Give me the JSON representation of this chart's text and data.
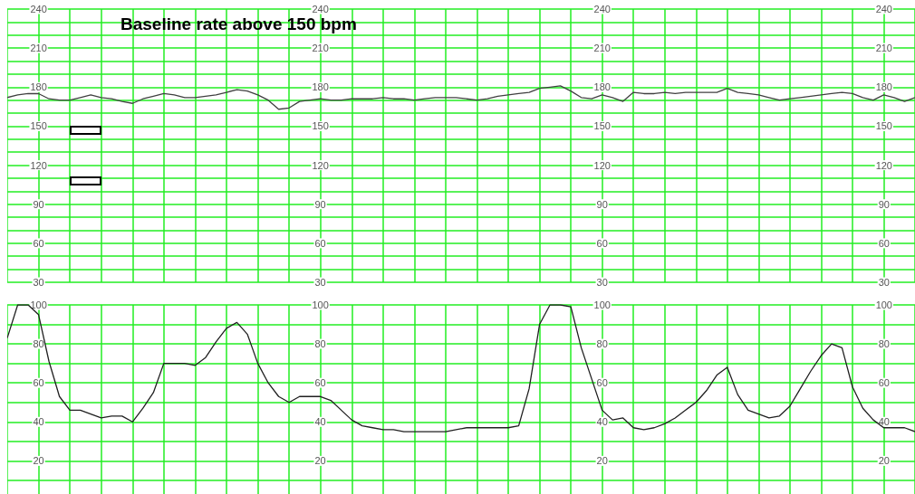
{
  "chart_data": [
    {
      "type": "line",
      "title": "Baseline rate above 150 bpm",
      "categories": [
        null,
        null,
        null,
        null,
        null,
        null,
        null,
        null,
        null,
        null,
        null,
        null,
        null,
        null,
        null,
        null,
        null,
        null,
        null,
        null,
        null,
        null,
        null,
        null,
        null,
        null,
        null,
        null,
        null,
        null,
        null,
        null,
        null,
        null,
        null,
        null,
        null,
        null,
        null,
        null,
        null,
        null,
        null,
        null,
        null
      ],
      "values": [
        172,
        174,
        175,
        175,
        171,
        170,
        170,
        172,
        174,
        172,
        171,
        169,
        167.5,
        171,
        173,
        175,
        174,
        172,
        172,
        173,
        174,
        176,
        178,
        177,
        174,
        170,
        163,
        164,
        169,
        170,
        171,
        170,
        170,
        171,
        171,
        171,
        172,
        171,
        171,
        170,
        171,
        172,
        172,
        172,
        171
      ],
      "color": "#404040",
      "ylim": [
        30,
        240
      ],
      "yticks": [
        30,
        {
          "value": 40,
          "label": null
        },
        {
          "value": 50,
          "label": null
        },
        60,
        {
          "value": 70,
          "label": null
        },
        {
          "value": 80,
          "label": null
        },
        90,
        {
          "value": 100,
          "label": null
        },
        {
          "value": 110,
          "label": null
        },
        120,
        {
          "value": 130,
          "label": null
        },
        {
          "value": 140,
          "label": null
        },
        150,
        {
          "value": 160,
          "label": null
        },
        {
          "value": 170,
          "label": null
        },
        180,
        {
          "value": 190,
          "label": null
        },
        {
          "value": 200,
          "label": null
        },
        210,
        {
          "value": 220,
          "label": null
        },
        {
          "value": 230,
          "label": null
        },
        240
      ],
      "y2lim": [
        30,
        240
      ],
      "y2ticks": [
        30,
        60,
        90,
        120,
        150,
        180,
        210,
        240
      ],
      "grid": true,
      "marker": "none",
      "tick_labels": "y"
    },
    {
      "type": "line",
      "categories": [
        null,
        null,
        null,
        null,
        null,
        null,
        null,
        null,
        null,
        null,
        null,
        null,
        null,
        null,
        null,
        null,
        null,
        null,
        null,
        null,
        null,
        null,
        null,
        null,
        null,
        null,
        null,
        null,
        null,
        null,
        null,
        null,
        null,
        null,
        null,
        null,
        null,
        null,
        null,
        null,
        null,
        null,
        null,
        null
      ],
      "values": [
        171,
        170,
        171,
        173,
        174,
        175,
        176,
        179,
        180,
        181,
        177,
        172,
        171,
        174,
        172,
        169,
        176,
        175,
        175,
        176,
        175,
        176,
        176,
        176,
        176,
        179,
        176,
        175,
        174,
        172,
        170,
        171,
        172,
        173,
        174,
        175,
        176,
        175,
        172,
        170,
        174,
        172,
        169,
        172
      ],
      "color": "#404040",
      "ylim": [
        30,
        240
      ],
      "yticks": [
        30,
        {
          "value": 40,
          "label": null
        },
        {
          "value": 50,
          "label": null
        },
        60,
        {
          "value": 70,
          "label": null
        },
        {
          "value": 80,
          "label": null
        },
        90,
        {
          "value": 100,
          "label": null
        },
        {
          "value": 110,
          "label": null
        },
        120,
        {
          "value": 130,
          "label": null
        },
        {
          "value": 140,
          "label": null
        },
        150,
        {
          "value": 160,
          "label": null
        },
        {
          "value": 170,
          "label": null
        },
        180,
        {
          "value": 190,
          "label": null
        },
        {
          "value": 200,
          "label": null
        },
        210,
        {
          "value": 220,
          "label": null
        },
        {
          "value": 230,
          "label": null
        },
        240
      ],
      "y2lim": [
        30,
        240
      ],
      "y2ticks": [
        30,
        60,
        90,
        120,
        150,
        180,
        210,
        240
      ],
      "grid": true,
      "marker": "none",
      "tick_labels": "y"
    },
    {
      "type": "line",
      "categories": [
        null,
        null,
        null,
        null,
        null,
        null,
        null,
        null,
        null,
        null,
        null,
        null,
        null,
        null,
        null,
        null,
        null,
        null,
        null,
        null,
        null,
        null,
        null,
        null,
        null,
        null,
        null,
        null,
        null,
        null,
        null,
        null,
        null,
        null,
        null,
        null,
        null,
        null,
        null,
        null,
        null,
        null,
        null,
        null,
        null
      ],
      "values": [
        83,
        100,
        100,
        95,
        71,
        53,
        46,
        46,
        44,
        42,
        43,
        43,
        40,
        47,
        55,
        70,
        70,
        70,
        69,
        73,
        81,
        88,
        91,
        85,
        70,
        60,
        53,
        50,
        53,
        53,
        53,
        51,
        46,
        41,
        38,
        37,
        36,
        36,
        35,
        35,
        35,
        35,
        35,
        36,
        37
      ],
      "color": "#202020",
      "ylim": [
        3,
        100
      ],
      "yticks": [
        {
          "value": 10,
          "label": null
        },
        20,
        {
          "value": 30,
          "label": null
        },
        40,
        {
          "value": 50,
          "label": null
        },
        60,
        {
          "value": 70,
          "label": null
        },
        80,
        {
          "value": 90,
          "label": null
        },
        100
      ],
      "y2lim": [
        3,
        100
      ],
      "y2ticks": [
        20,
        40,
        60,
        80,
        100
      ],
      "grid": true,
      "marker": "none",
      "tick_labels": "y"
    },
    {
      "type": "line",
      "categories": [
        null,
        null,
        null,
        null,
        null,
        null,
        null,
        null,
        null,
        null,
        null,
        null,
        null,
        null,
        null,
        null,
        null,
        null,
        null,
        null,
        null,
        null,
        null,
        null,
        null,
        null,
        null,
        null,
        null,
        null,
        null,
        null,
        null,
        null,
        null,
        null,
        null,
        null,
        null,
        null,
        null,
        null,
        null,
        null
      ],
      "values": [
        37,
        37,
        37,
        37,
        37,
        38,
        57,
        90,
        100,
        100,
        99,
        78,
        62,
        46,
        41,
        42,
        37,
        36,
        37,
        39,
        42,
        46,
        50,
        56,
        64,
        68,
        54,
        46,
        44,
        42,
        43,
        48,
        57,
        66,
        74,
        80,
        78,
        58,
        47,
        41,
        37,
        37,
        37,
        35
      ],
      "color": "#202020",
      "ylim": [
        3,
        100
      ],
      "yticks": [
        {
          "value": 10,
          "label": null
        },
        20,
        {
          "value": 30,
          "label": null
        },
        40,
        {
          "value": 50,
          "label": null
        },
        60,
        {
          "value": 70,
          "label": null
        },
        80,
        {
          "value": 90,
          "label": null
        },
        100
      ],
      "y2lim": [
        3,
        100
      ],
      "y2ticks": [
        20,
        40,
        60,
        80,
        100
      ],
      "grid": true,
      "marker": "none",
      "tick_labels": "y"
    }
  ]
}
